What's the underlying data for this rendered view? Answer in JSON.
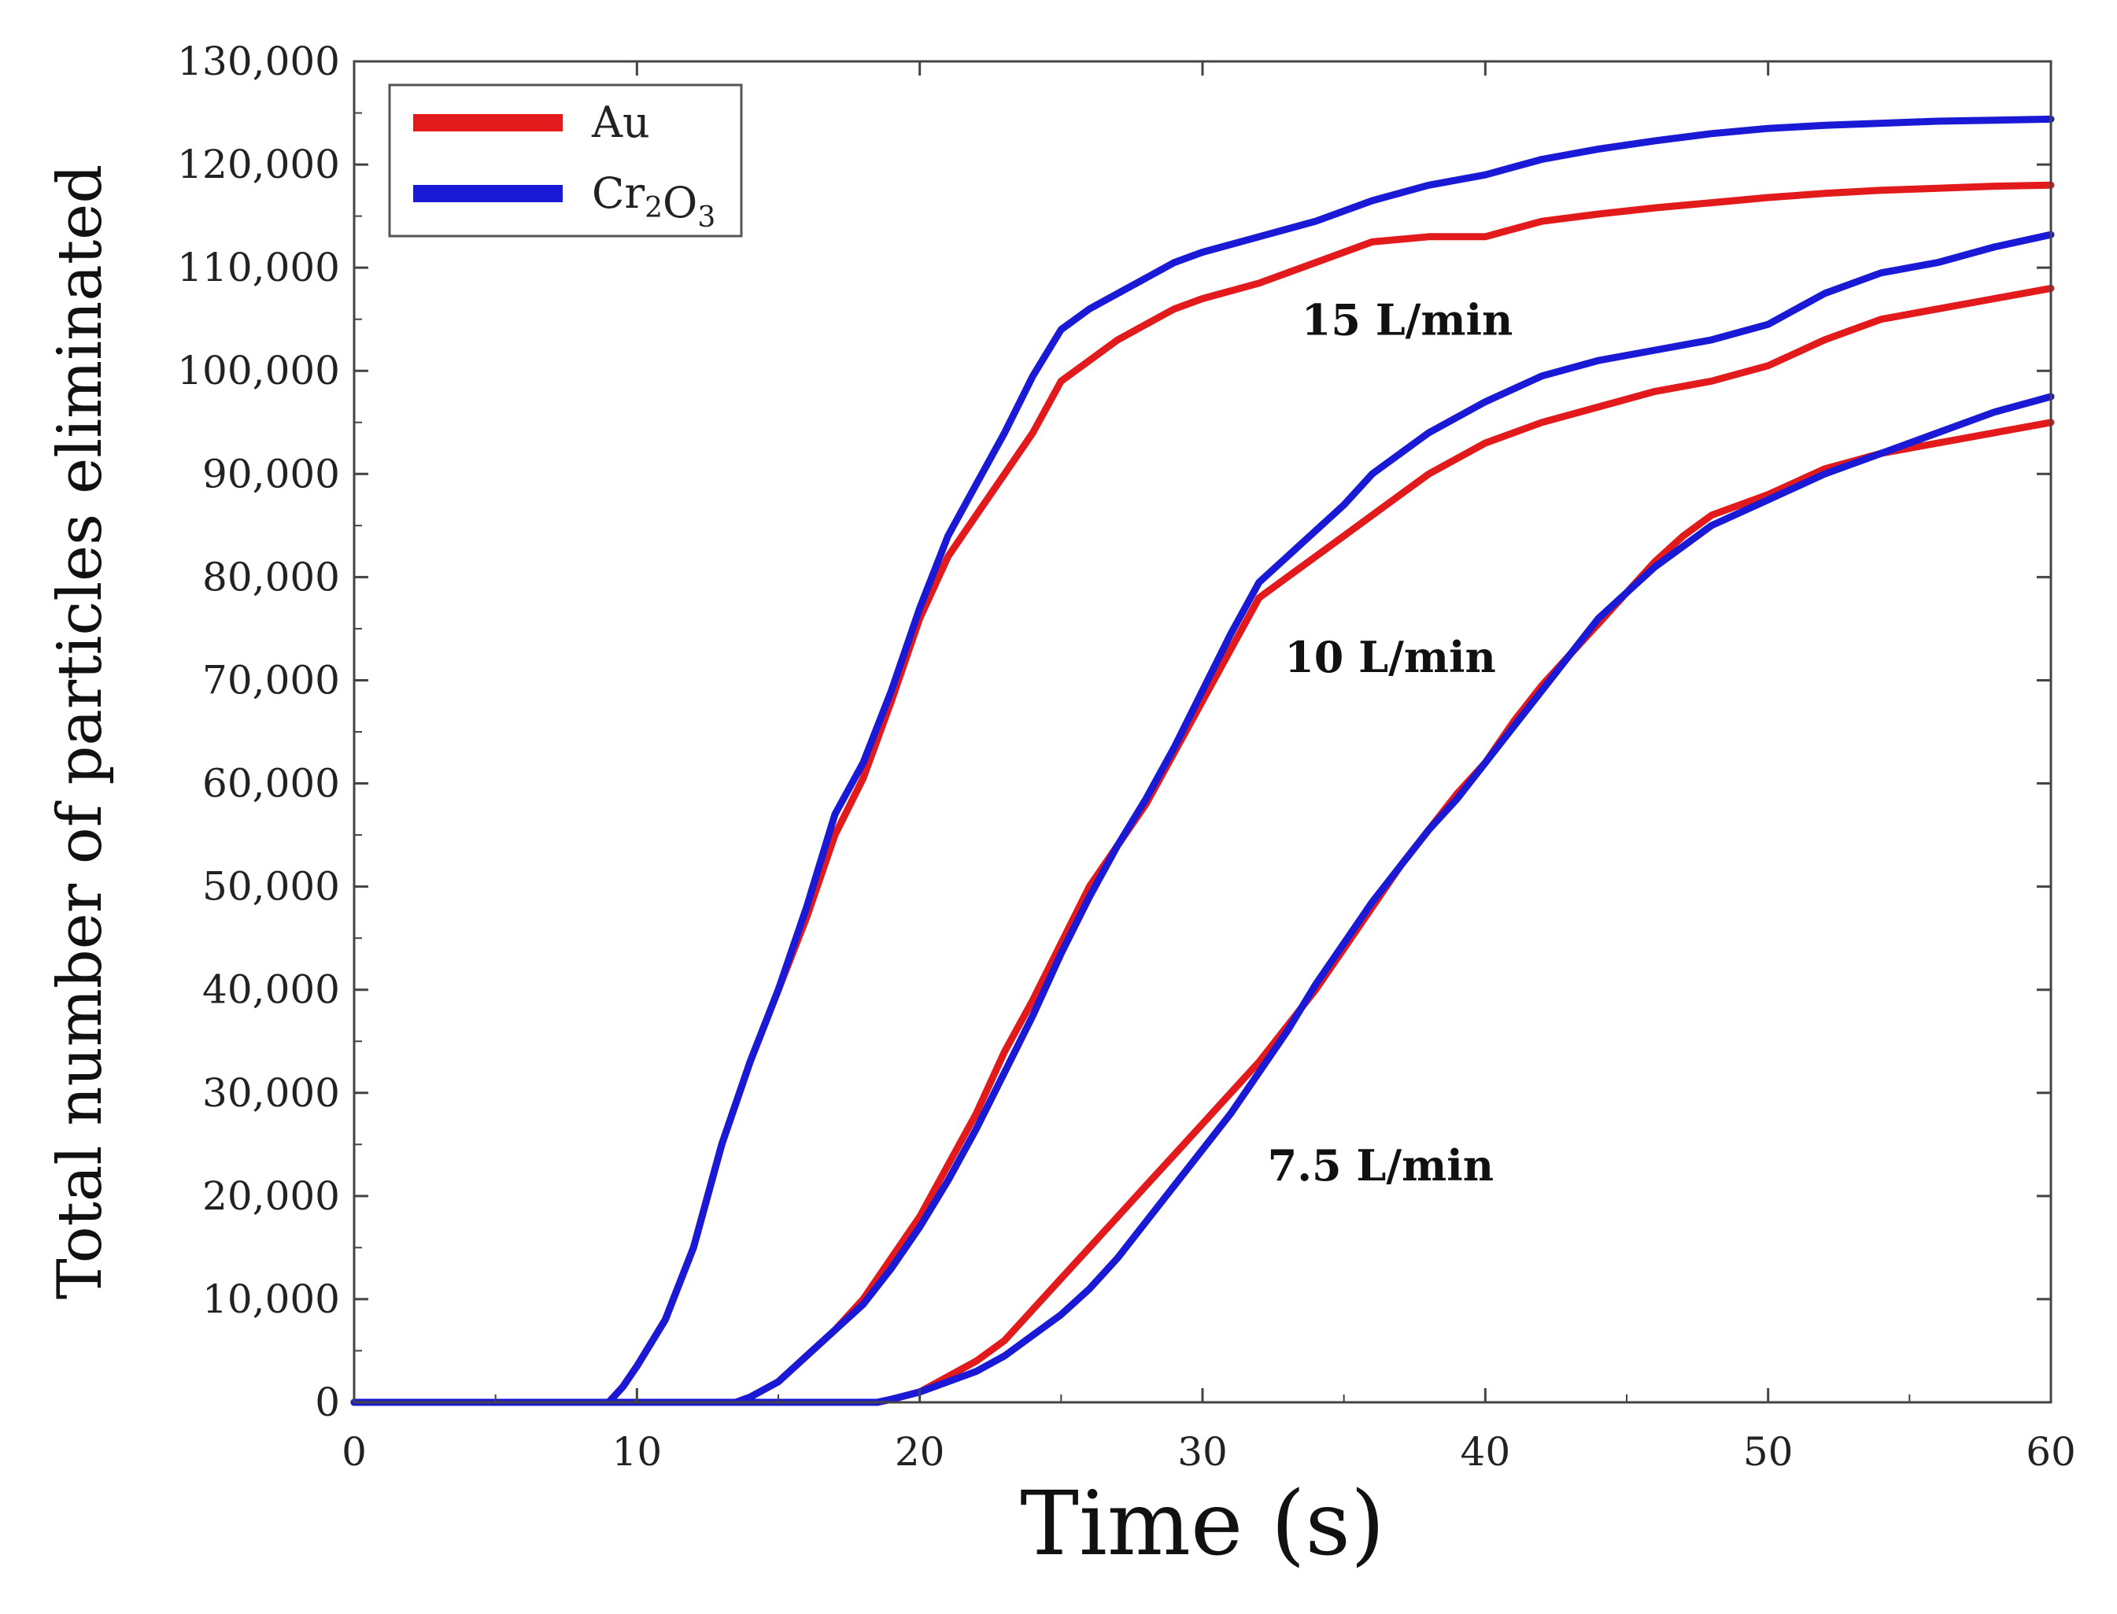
{
  "chart_data": {
    "type": "line",
    "title": "",
    "xlabel": "Time (s)",
    "ylabel": "Total number of particles eliminated",
    "xlim": [
      0,
      60
    ],
    "ylim": [
      0,
      130000
    ],
    "x_ticks": [
      0,
      10,
      20,
      30,
      40,
      50,
      60
    ],
    "x_tick_labels": [
      "0",
      "10",
      "20",
      "30",
      "40",
      "50",
      "60"
    ],
    "y_ticks": [
      0,
      10000,
      20000,
      30000,
      40000,
      50000,
      60000,
      70000,
      80000,
      90000,
      100000,
      110000,
      120000,
      130000
    ],
    "y_tick_labels": [
      "0",
      "10,000",
      "20,000",
      "30,000",
      "40,000",
      "50,000",
      "60,000",
      "70,000",
      "80,000",
      "90,000",
      "100,000",
      "110,000",
      "120,000",
      "130,000"
    ],
    "grid": false,
    "legend": {
      "position": "top-left",
      "entries": [
        {
          "series": "Au",
          "label_main": "Au",
          "label_sub": "",
          "label_tail": "",
          "color": "#e31a1c"
        },
        {
          "series": "Cr2O3",
          "label_main": "Cr",
          "label_sub": "2",
          "label_tail": "O",
          "label_sub2": "3",
          "color": "#1a1ad6"
        }
      ]
    },
    "annotations": [
      {
        "text": "15 L/min",
        "x": 33.5,
        "y": 103500
      },
      {
        "text": "10 L/min",
        "x": 32.9,
        "y": 70800
      },
      {
        "text": "7.5 L/min",
        "x": 32.3,
        "y": 21500
      }
    ],
    "series": [
      {
        "name": "Au 15 L/min",
        "legend": "Au",
        "color": "#e31a1c",
        "x": [
          0,
          9,
          9.5,
          10,
          11,
          12,
          13,
          14,
          15,
          16,
          17,
          18,
          19,
          20,
          21,
          22,
          23,
          24,
          25,
          26,
          27,
          28,
          29,
          30,
          32,
          34,
          36,
          38,
          40,
          42,
          44,
          46,
          48,
          50,
          52,
          54,
          56,
          58,
          60
        ],
        "y": [
          0,
          0,
          1500,
          3500,
          8000,
          15000,
          25000,
          33000,
          40000,
          47000,
          55000,
          60500,
          68000,
          76000,
          82000,
          86000,
          90000,
          94000,
          99000,
          101000,
          103000,
          104500,
          106000,
          107000,
          108500,
          110500,
          112500,
          113000,
          113000,
          114500,
          115200,
          115800,
          116300,
          116800,
          117200,
          117500,
          117700,
          117900,
          118000
        ]
      },
      {
        "name": "Cr2O3 15 L/min",
        "legend": "Cr2O3",
        "color": "#1a1ad6",
        "x": [
          0,
          9,
          9.5,
          10,
          11,
          12,
          13,
          14,
          15,
          16,
          17,
          18,
          19,
          20,
          21,
          22,
          23,
          24,
          25,
          26,
          27,
          28,
          29,
          30,
          32,
          34,
          36,
          38,
          40,
          42,
          44,
          46,
          48,
          50,
          52,
          54,
          56,
          58,
          60
        ],
        "y": [
          0,
          0,
          1500,
          3500,
          8000,
          15000,
          25000,
          33000,
          40000,
          48000,
          57000,
          62000,
          69000,
          77000,
          84000,
          89000,
          94000,
          99500,
          104000,
          106000,
          107500,
          109000,
          110500,
          111500,
          113000,
          114500,
          116500,
          118000,
          119000,
          120500,
          121500,
          122300,
          123000,
          123500,
          123800,
          124000,
          124200,
          124300,
          124400
        ]
      },
      {
        "name": "Au 10 L/min",
        "legend": "Au",
        "color": "#e31a1c",
        "x": [
          0,
          13.5,
          14,
          15,
          16,
          17,
          18,
          19,
          20,
          21,
          22,
          23,
          24,
          25,
          26,
          27,
          28,
          29,
          30,
          31,
          32,
          33,
          34,
          35,
          36,
          37,
          38,
          40,
          42,
          44,
          46,
          48,
          50,
          52,
          54,
          56,
          58,
          60
        ],
        "y": [
          0,
          0,
          500,
          2000,
          4500,
          7000,
          10000,
          14000,
          18000,
          23000,
          28000,
          34000,
          39000,
          44500,
          50000,
          54000,
          58000,
          63000,
          68000,
          73000,
          78000,
          80000,
          82000,
          84000,
          86000,
          88000,
          90000,
          93000,
          95000,
          96500,
          98000,
          99000,
          100500,
          103000,
          105000,
          106000,
          107000,
          108000
        ]
      },
      {
        "name": "Cr2O3 10 L/min",
        "legend": "Cr2O3",
        "color": "#1a1ad6",
        "x": [
          0,
          13.5,
          14,
          15,
          16,
          17,
          18,
          19,
          20,
          21,
          22,
          23,
          24,
          25,
          26,
          27,
          28,
          29,
          30,
          31,
          32,
          33,
          34,
          35,
          36,
          37,
          38,
          40,
          42,
          44,
          46,
          48,
          50,
          52,
          54,
          56,
          58,
          60
        ],
        "y": [
          0,
          0,
          500,
          2000,
          4500,
          7000,
          9500,
          13000,
          17000,
          21500,
          26500,
          32000,
          37500,
          43500,
          49000,
          54000,
          58500,
          63500,
          69000,
          74500,
          79500,
          82000,
          84500,
          87000,
          90000,
          92000,
          94000,
          97000,
          99500,
          101000,
          102000,
          103000,
          104500,
          107500,
          109500,
          110500,
          112000,
          113200
        ]
      },
      {
        "name": "Au 7.5 L/min",
        "legend": "Au",
        "color": "#e31a1c",
        "x": [
          0,
          18.5,
          19,
          20,
          21,
          22,
          23,
          24,
          25,
          26,
          27,
          28,
          29,
          30,
          31,
          32,
          33,
          34,
          35,
          36,
          37,
          38,
          39,
          40,
          41,
          42,
          43,
          44,
          45,
          46,
          47,
          48,
          50,
          52,
          54,
          56,
          58,
          60
        ],
        "y": [
          0,
          0,
          300,
          1000,
          2500,
          4000,
          6000,
          9000,
          12000,
          15000,
          18000,
          21000,
          24000,
          27000,
          30000,
          33000,
          36500,
          40000,
          44000,
          48000,
          52000,
          55500,
          59000,
          62000,
          66000,
          69500,
          72500,
          75500,
          78500,
          81500,
          84000,
          86000,
          88000,
          90500,
          92000,
          93000,
          94000,
          95000
        ]
      },
      {
        "name": "Cr2O3 7.5 L/min",
        "legend": "Cr2O3",
        "color": "#1a1ad6",
        "x": [
          0,
          18.5,
          19,
          20,
          21,
          22,
          23,
          24,
          25,
          26,
          27,
          28,
          29,
          30,
          31,
          32,
          33,
          34,
          35,
          36,
          37,
          38,
          39,
          40,
          41,
          42,
          43,
          44,
          45,
          46,
          47,
          48,
          50,
          52,
          54,
          56,
          58,
          60
        ],
        "y": [
          0,
          0,
          300,
          1000,
          2000,
          3000,
          4500,
          6500,
          8500,
          11000,
          14000,
          17500,
          21000,
          24500,
          28000,
          32000,
          36000,
          40500,
          44500,
          48500,
          52000,
          55500,
          58500,
          62000,
          65500,
          69000,
          72500,
          76000,
          78500,
          81000,
          83000,
          85000,
          87500,
          90000,
          92000,
          94000,
          96000,
          97500
        ]
      }
    ]
  }
}
